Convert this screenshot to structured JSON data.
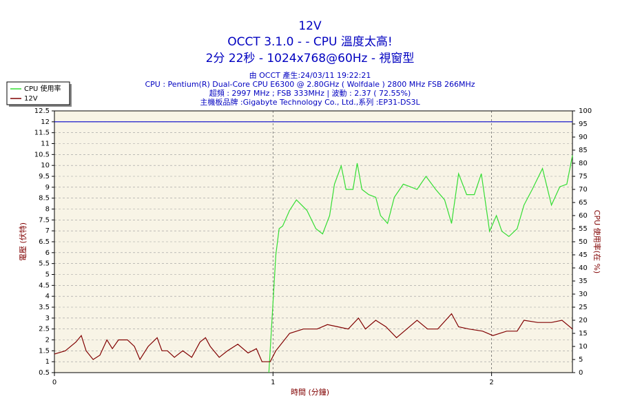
{
  "chart_data": {
    "type": "line",
    "title": "12V",
    "subtitle": "OCCT 3.1.0 -  - CPU 溫度太高!",
    "subtitle2": "2分 22秒 - 1024x768@60Hz - 視窗型",
    "info": [
      "由 OCCT 產生:24/03/11 19:22:21",
      "CPU : Pentium(R) Dual-Core CPU E6300 @ 2.80GHz ( Wolfdale ) 2800 MHz FSB 266MHz",
      "超頻 : 2997 MHz ; FSB 333MHz | 波動 : 2.37 ( 72.55%)",
      "主機板品牌 :Gigabyte Technology Co., Ltd.,系列 :EP31-DS3L"
    ],
    "x_label": "時間 (分鐘)",
    "y_label": "電壓 (伏特)",
    "y2_label": "CPU 使用率(在 %)",
    "xlim": [
      0,
      2.37
    ],
    "xticks": [
      0,
      1,
      2
    ],
    "ylim": [
      0.5,
      12.5
    ],
    "yticks": [
      0.5,
      1,
      1.5,
      2,
      2.5,
      3,
      3.5,
      4,
      4.5,
      5,
      5.5,
      6,
      6.5,
      7,
      7.5,
      8,
      8.5,
      9,
      9.5,
      10,
      10.5,
      11,
      11.5,
      12,
      12.5
    ],
    "y2lim": [
      0,
      100
    ],
    "y2ticks": [
      0,
      5,
      10,
      15,
      20,
      25,
      30,
      35,
      40,
      45,
      50,
      55,
      60,
      65,
      70,
      75,
      80,
      85,
      90,
      95,
      100
    ],
    "grid": true,
    "legend": "top-left",
    "reference_line": {
      "value": 12,
      "color": "#0000c8"
    },
    "series": [
      {
        "name": "CPU 使用率",
        "color": "#33dd33",
        "axis": "y2",
        "x": [
          0.981,
          1.013,
          1.028,
          1.044,
          1.076,
          1.107,
          1.155,
          1.196,
          1.227,
          1.259,
          1.281,
          1.312,
          1.334,
          1.366,
          1.385,
          1.407,
          1.438,
          1.47,
          1.492,
          1.524,
          1.555,
          1.596,
          1.628,
          1.659,
          1.7,
          1.744,
          1.785,
          1.817,
          1.849,
          1.886,
          1.921,
          1.953,
          1.991,
          2.022,
          2.047,
          2.079,
          2.117,
          2.148,
          2.186,
          2.233,
          2.274,
          2.312,
          2.344,
          2.37
        ],
        "values": [
          0,
          45,
          55,
          56,
          62,
          66,
          62,
          55,
          53,
          60,
          72,
          79,
          70,
          70,
          80,
          70,
          68,
          67,
          60,
          57,
          67,
          72,
          71,
          70,
          75,
          70,
          66,
          57,
          76,
          68,
          68,
          76,
          54,
          60,
          54,
          52,
          55,
          64,
          70,
          78,
          64,
          71,
          72,
          83
        ]
      },
      {
        "name": "12V",
        "color": "#800000",
        "x": [
          0,
          0.05,
          0.098,
          0.123,
          0.145,
          0.177,
          0.208,
          0.24,
          0.265,
          0.293,
          0.334,
          0.366,
          0.391,
          0.429,
          0.47,
          0.492,
          0.517,
          0.549,
          0.587,
          0.628,
          0.666,
          0.691,
          0.713,
          0.754,
          0.792,
          0.839,
          0.886,
          0.924,
          0.95,
          0.987,
          1.013,
          1.076,
          1.139,
          1.202,
          1.249,
          1.297,
          1.344,
          1.391,
          1.423,
          1.47,
          1.517,
          1.565,
          1.612,
          1.659,
          1.707,
          1.754,
          1.817,
          1.849,
          1.896,
          1.959,
          2.006,
          2.069,
          2.117,
          2.148,
          2.211,
          2.274,
          2.322,
          2.37
        ],
        "values": [
          1.35,
          1.5,
          1.9,
          2.2,
          1.5,
          1.1,
          1.3,
          2.0,
          1.6,
          2.0,
          2.0,
          1.7,
          1.1,
          1.7,
          2.1,
          1.5,
          1.5,
          1.2,
          1.5,
          1.2,
          1.9,
          2.1,
          1.7,
          1.2,
          1.5,
          1.8,
          1.4,
          1.6,
          1.0,
          1.0,
          1.5,
          2.3,
          2.5,
          2.5,
          2.7,
          2.6,
          2.5,
          3.0,
          2.5,
          2.9,
          2.6,
          2.1,
          2.5,
          2.9,
          2.5,
          2.5,
          3.2,
          2.6,
          2.5,
          2.4,
          2.2,
          2.4,
          2.4,
          2.9,
          2.8,
          2.8,
          2.9,
          2.5
        ]
      }
    ]
  }
}
